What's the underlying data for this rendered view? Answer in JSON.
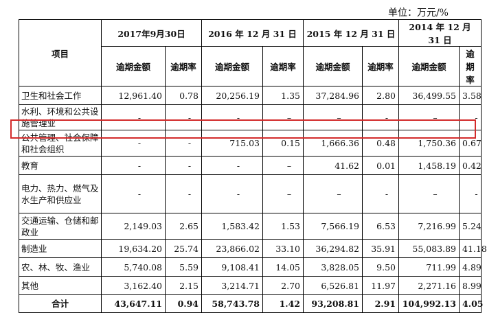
{
  "unit": "单位：万元/%",
  "header": {
    "item_label": "项目",
    "years": [
      "2017年9月30日",
      "2016 年 12 月 31 日",
      "2015 年 12 月 31 日",
      "2014 年 12 月 31 日"
    ],
    "amount_label": "逾期金额",
    "rate_label": "逾期率"
  },
  "rows": [
    {
      "name": "卫生和社会工作",
      "cells": [
        "12,961.40",
        "0.78",
        "20,256.19",
        "1.35",
        "37,284.96",
        "2.80",
        "36,499.55",
        "3.58"
      ]
    },
    {
      "name": "水利、环境和公共设施管理业",
      "cells": [
        "-",
        "-",
        "-",
        "–",
        "–",
        "-",
        "–",
        "-"
      ]
    },
    {
      "name": "公共管理、社会保障和社会组织",
      "cells": [
        "-",
        "-",
        "715.03",
        "0.15",
        "1,666.36",
        "0.48",
        "1,750.36",
        "0.67"
      ]
    },
    {
      "name": "教育",
      "cells": [
        "-",
        "-",
        "-",
        "–",
        "41.62",
        "0.01",
        "1,458.19",
        "0.42"
      ]
    },
    {
      "name": "电力、热力、燃气及水生产和供应业",
      "cells": [
        "-",
        "-",
        "-",
        "–",
        "–",
        "-",
        "–",
        "-"
      ]
    },
    {
      "name": "交通运输、仓储和邮政业",
      "cells": [
        "2,149.03",
        "2.65",
        "1,583.42",
        "1.53",
        "7,566.19",
        "6.53",
        "7,216.99",
        "5.24"
      ]
    },
    {
      "name": "制造业",
      "cells": [
        "19,634.20",
        "25.74",
        "23,866.02",
        "33.10",
        "36,294.82",
        "35.91",
        "55,083.89",
        "41.18"
      ]
    },
    {
      "name": "农、林、牧、渔业",
      "cells": [
        "5,740.08",
        "5.59",
        "9,108.41",
        "14.05",
        "3,828.05",
        "9.50",
        "711.99",
        "4.89"
      ]
    },
    {
      "name": "其他",
      "cells": [
        "3,162.40",
        "2.15",
        "3,214.71",
        "2.70",
        "6,526.81",
        "11.97",
        "2,271.16",
        "8.99"
      ]
    }
  ],
  "total": {
    "name": "合计",
    "cells": [
      "43,647.11",
      "0.94",
      "58,743.78",
      "1.42",
      "93,208.81",
      "2.91",
      "104,992.13",
      "4.05"
    ]
  },
  "highlight_color": "#d32b2b"
}
